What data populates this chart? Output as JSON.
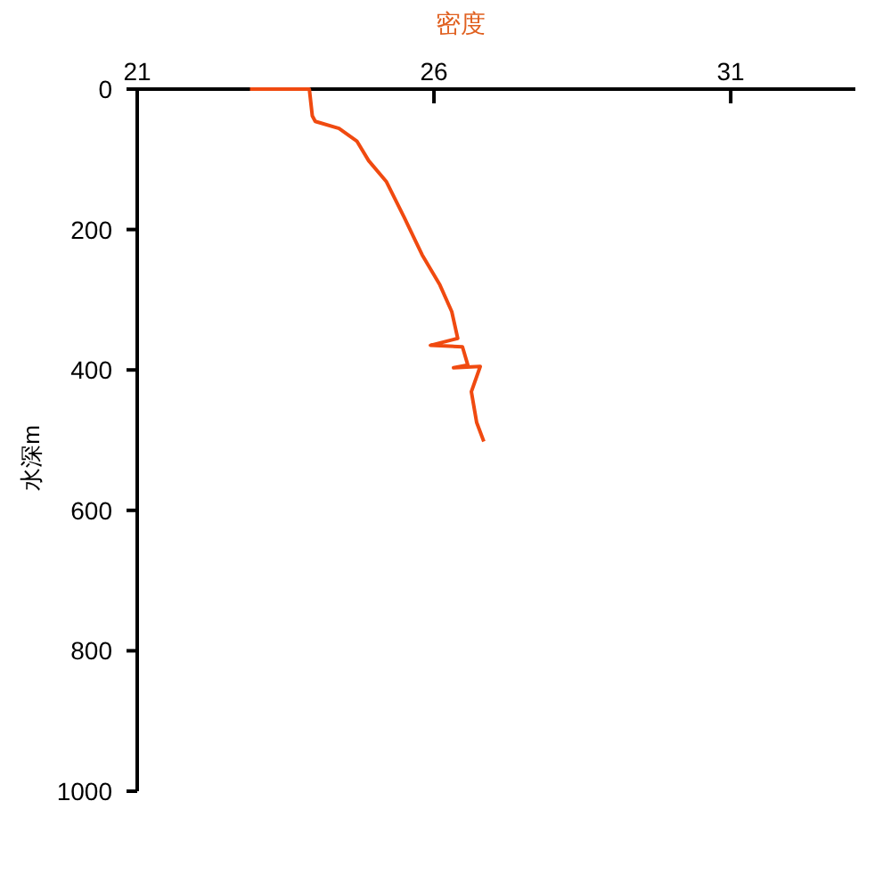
{
  "chart_data": {
    "type": "line",
    "xlabel": "密度",
    "ylabel": "水深m",
    "xlim": [
      21,
      33.1
    ],
    "xticks": [
      21,
      26,
      31
    ],
    "ylim": [
      1000,
      0
    ],
    "yticks": [
      0,
      200,
      400,
      600,
      800,
      1000
    ],
    "grid": false,
    "series": [
      {
        "color": "#f04a10",
        "x": [
          22.9,
          23.9,
          23.95,
          24.0,
          24.4,
          24.7,
          24.9,
          25.2,
          25.5,
          25.8,
          26.1,
          26.3,
          26.4,
          25.94,
          26.48,
          26.57,
          26.33,
          26.78,
          26.63,
          26.72,
          26.84
        ],
        "values": [
          0,
          0,
          38,
          46,
          56,
          74,
          102,
          132,
          183,
          236,
          279,
          317,
          355,
          365,
          367,
          393,
          397,
          395,
          431,
          475,
          502
        ]
      }
    ]
  }
}
